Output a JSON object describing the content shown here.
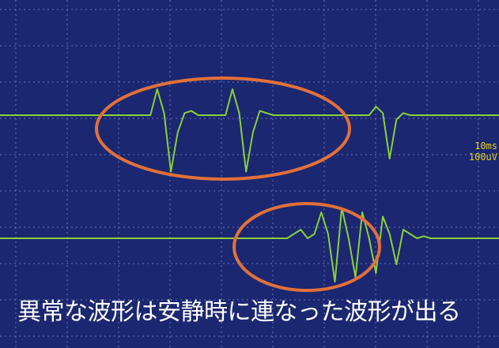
{
  "caption": "異常な波形は安静時に連なった波形が出る",
  "scale": {
    "time_per_div": "10ms",
    "amplitude_per_div": "100uV"
  },
  "colors": {
    "background": "#1b2770",
    "grid": "#7f8fd0",
    "trace": "#8ccf3a",
    "highlight_ellipse": "#e2703a",
    "scale_text": "#e8d21c",
    "caption_text": "#ffffff"
  },
  "chart_data": {
    "type": "line",
    "title": "",
    "xlabel": "",
    "ylabel": "",
    "x_unit_per_div": "10ms",
    "y_unit_per_div": "100uV",
    "grid": true,
    "x": [
      0,
      10,
      20,
      30,
      40,
      50,
      60,
      70,
      80,
      90,
      100,
      110,
      120,
      130,
      140,
      150,
      160,
      170,
      180,
      190,
      200,
      210,
      220,
      230,
      240,
      250,
      260,
      270,
      280,
      290,
      300,
      310,
      320,
      330,
      340,
      350,
      360,
      370,
      380,
      390,
      400,
      410,
      420,
      430,
      440,
      450,
      460,
      470,
      480,
      490,
      500,
      510,
      520,
      530,
      540,
      550,
      560,
      570,
      580,
      590,
      600,
      610,
      620,
      630,
      640,
      650,
      660,
      670,
      680,
      690,
      700,
      710,
      720,
      730
    ],
    "series": [
      {
        "values": [
          0,
          0,
          0,
          0,
          0,
          0,
          0,
          0,
          0,
          0,
          0,
          0,
          0,
          0,
          0,
          0,
          0,
          0,
          0,
          0,
          0,
          0,
          0,
          60,
          5,
          -130,
          -40,
          5,
          10,
          0,
          0,
          0,
          0,
          0,
          60,
          5,
          -130,
          -40,
          10,
          5,
          0,
          0,
          0,
          0,
          0,
          0,
          0,
          0,
          0,
          0,
          0,
          0,
          0,
          0,
          0,
          20,
          5,
          -100,
          -10,
          5,
          0,
          0,
          0,
          0,
          0,
          0,
          0,
          0,
          0,
          0,
          0,
          0,
          0,
          0
        ]
      },
      {
        "values": [
          0,
          0,
          0,
          0,
          0,
          0,
          0,
          0,
          0,
          0,
          0,
          0,
          0,
          0,
          0,
          0,
          0,
          0,
          0,
          0,
          0,
          0,
          0,
          0,
          0,
          0,
          0,
          0,
          0,
          0,
          0,
          0,
          0,
          0,
          0,
          0,
          0,
          0,
          0,
          0,
          0,
          0,
          0,
          10,
          20,
          0,
          10,
          60,
          10,
          -100,
          70,
          0,
          -90,
          60,
          0,
          -80,
          50,
          10,
          -60,
          20,
          10,
          0,
          5,
          0,
          0,
          0,
          0,
          0,
          0,
          0,
          0,
          0,
          0,
          0
        ]
      }
    ]
  }
}
